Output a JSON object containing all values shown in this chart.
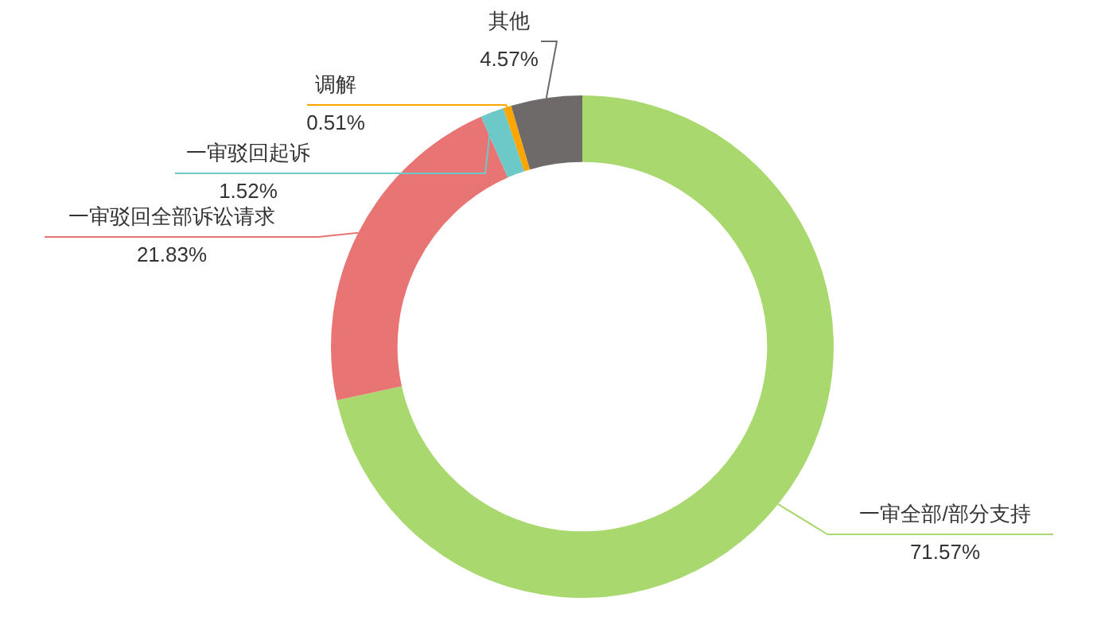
{
  "chart_data": {
    "type": "donut",
    "categories": [
      "一审全部/部分支持",
      "一审驳回全部诉讼请求",
      "一审驳回起诉",
      "调解",
      "其他"
    ],
    "values": [
      71.57,
      21.83,
      1.52,
      0.51,
      4.57
    ],
    "value_labels": [
      "71.57%",
      "21.83%",
      "1.52%",
      "0.51%",
      "4.57%"
    ],
    "colors": [
      "#a9d86e",
      "#e87573",
      "#6cc9c8",
      "#ffa500",
      "#6e6a6a"
    ],
    "legend": false
  }
}
